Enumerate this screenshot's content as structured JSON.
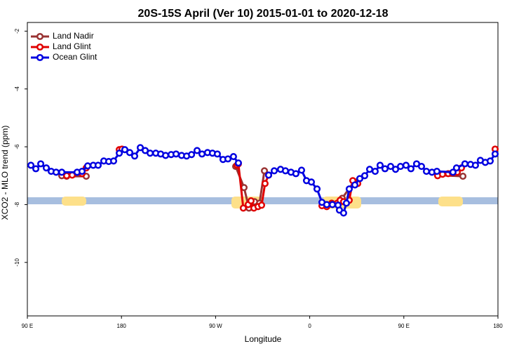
{
  "chart_data": {
    "type": "line",
    "title": "20S-15S April (Ver 10)   2015-01-01 to 2020-12-18",
    "xlabel": "Longitude",
    "ylabel": "XCO2 - MLO trend (ppm)",
    "xlim": [
      90,
      540
    ],
    "ylim": [
      -11.85,
      -1.7
    ],
    "xticks": [
      {
        "value": 90,
        "label": "90 E"
      },
      {
        "value": 180,
        "label": "180"
      },
      {
        "value": 270,
        "label": "90 W"
      },
      {
        "value": 360,
        "label": "0"
      },
      {
        "value": 450,
        "label": "90 E"
      },
      {
        "value": 540,
        "label": "180"
      }
    ],
    "yticks": [
      -2,
      -4,
      -6,
      -8,
      -10
    ],
    "legend": "upper left",
    "series": [
      {
        "name": "Land Nadir",
        "color": "#993333",
        "x": [
          122.9,
          127.6,
          146.3,
          null,
          289.2,
          297.2,
          301.9,
          307.3,
          312.0,
          316.7,
          null,
          391.1,
          402.5,
          null,
          482.3,
          506.5
        ],
        "values": [
          -7.0,
          -7.02,
          -7.02,
          null,
          -6.68,
          -7.41,
          -8.12,
          -7.9,
          -7.95,
          -6.83,
          null,
          -7.78,
          -7.2,
          null,
          -6.98,
          -7.02
        ]
      },
      {
        "name": "Land Glint",
        "color": "#e00000",
        "x": [
          127.6,
          132.9,
          142.3,
          146.3,
          null,
          177.9,
          180.5,
          null,
          290.5,
          291.8,
          296.5,
          301.2,
          303.9,
          306.6,
          310.6,
          314.0,
          317.3,
          320.7,
          null,
          371.7,
          376.3,
          381.0,
          386.4,
          389.1,
          392.4,
          397.8,
          401.2,
          405.9,
          null,
          482.3,
          487.0,
          492.4,
          496.4,
          501.1,
          505.1,
          null,
          537.3
        ],
        "values": [
          -7.0,
          -6.98,
          -6.93,
          -6.73,
          null,
          -6.1,
          -6.08,
          null,
          -6.64,
          -6.59,
          -8.12,
          -8.0,
          -7.87,
          -8.12,
          -8.07,
          -8.02,
          -7.27,
          -6.98,
          null,
          -8.04,
          -8.07,
          -7.95,
          -7.95,
          -7.85,
          -7.9,
          -7.85,
          -7.17,
          -7.27,
          null,
          -7.0,
          -6.95,
          -6.93,
          -6.9,
          -6.88,
          -6.73,
          null,
          -6.08
        ]
      },
      {
        "name": "Ocean Glint",
        "color": "#0000e0",
        "x": [
          93.4,
          98.1,
          102.8,
          108.1,
          112.8,
          117.5,
          122.9,
          137.6,
          142.3,
          147.7,
          153.0,
          157.7,
          163.1,
          167.8,
          172.5,
          177.9,
          183.2,
          187.9,
          192.6,
          198.0,
          202.7,
          207.4,
          212.8,
          217.5,
          222.2,
          227.5,
          232.2,
          237.5,
          242.3,
          247.0,
          252.3,
          257.0,
          262.3,
          267.0,
          271.7,
          277.1,
          281.8,
          287.1,
          291.8,
          null,
          320.7,
          326.1,
          332.1,
          336.8,
          342.1,
          346.8,
          352.2,
          356.9,
          361.6,
          367.0,
          371.7,
          376.3,
          381.7,
          387.1,
          388.4,
          392.4,
          395.1,
          397.8,
          403.2,
          407.9,
          412.6,
          417.3,
          422.6,
          427.3,
          432.0,
          437.4,
          442.1,
          446.8,
          452.1,
          456.8,
          462.2,
          466.9,
          471.6,
          476.9,
          481.6,
          497.0,
          500.4,
          508.4,
          513.8,
          518.5,
          523.2,
          527.9,
          532.6,
          537.3
        ],
        "values": [
          -6.64,
          -6.76,
          -6.59,
          -6.73,
          -6.85,
          -6.88,
          -6.88,
          -6.88,
          -6.85,
          -6.66,
          -6.64,
          -6.64,
          -6.49,
          -6.51,
          -6.49,
          -6.22,
          -6.1,
          -6.2,
          -6.32,
          -6.03,
          -6.13,
          -6.22,
          -6.22,
          -6.25,
          -6.3,
          -6.27,
          -6.25,
          -6.3,
          -6.32,
          -6.27,
          -6.13,
          -6.25,
          -6.2,
          -6.22,
          -6.25,
          -6.44,
          -6.42,
          -6.34,
          -6.56,
          null,
          -6.98,
          -6.83,
          -6.78,
          -6.83,
          -6.88,
          -6.93,
          -6.81,
          -7.17,
          -7.22,
          -7.46,
          -7.92,
          -8.0,
          -8.0,
          -8.02,
          -8.19,
          -8.29,
          -7.95,
          -7.46,
          -7.32,
          -7.1,
          -7.0,
          -6.78,
          -6.85,
          -6.64,
          -6.76,
          -6.68,
          -6.78,
          -6.68,
          -6.64,
          -6.76,
          -6.59,
          -6.68,
          -6.85,
          -6.88,
          -6.85,
          -6.88,
          -6.73,
          -6.59,
          -6.61,
          -6.64,
          -6.47,
          -6.54,
          -6.49,
          -6.25
        ]
      }
    ]
  }
}
